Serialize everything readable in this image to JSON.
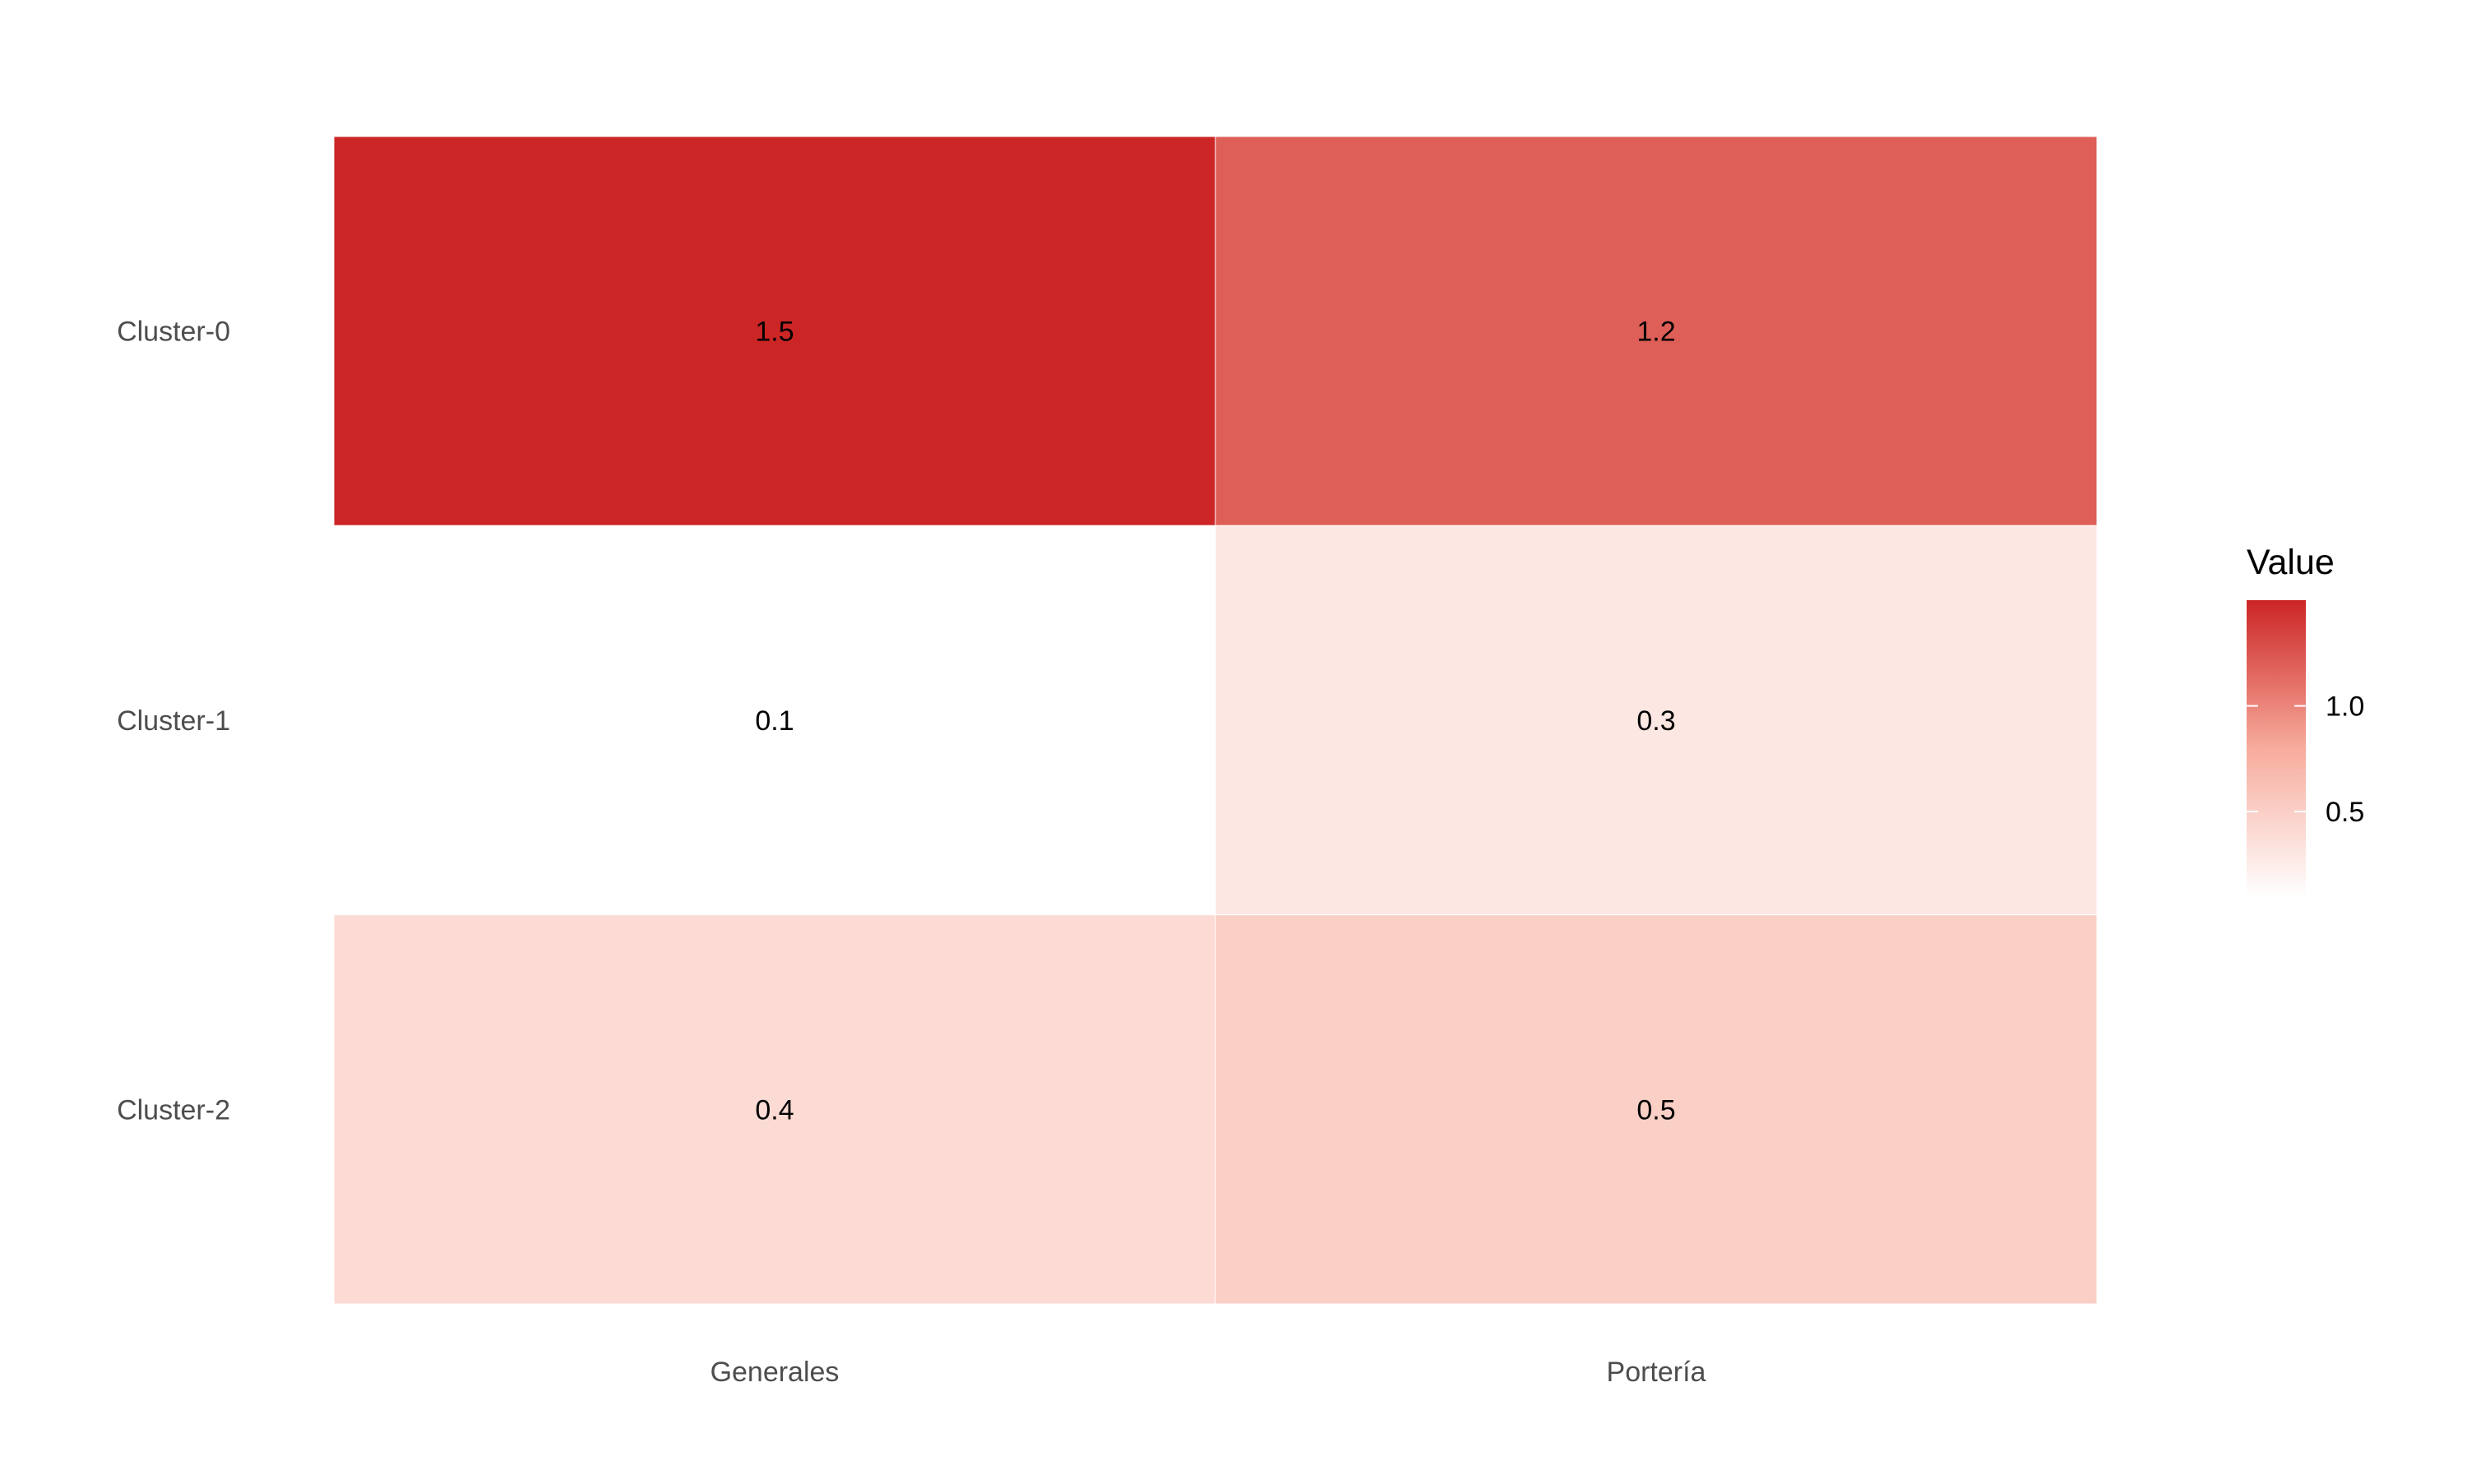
{
  "chart_data": {
    "type": "heatmap",
    "title": "",
    "xlabel": "",
    "ylabel": "",
    "x_categories": [
      "Generales",
      "Portería"
    ],
    "y_categories": [
      "Cluster-0",
      "Cluster-1",
      "Cluster-2"
    ],
    "values": [
      [
        1.5,
        1.2
      ],
      [
        0.1,
        0.3
      ],
      [
        0.4,
        0.5
      ]
    ],
    "cell_labels": [
      [
        "1.5",
        "1.2"
      ],
      [
        "0.1",
        "0.3"
      ],
      [
        "0.4",
        "0.5"
      ]
    ],
    "legend": {
      "title": "Value",
      "placement": "right",
      "ticks": [
        1.0,
        0.5
      ],
      "tick_labels": [
        "1.0",
        "0.5"
      ],
      "range": [
        0.1,
        1.5
      ]
    },
    "colors": {
      "low": "#ffffff",
      "mid": "#f7ab9c",
      "high": "#cc2525",
      "text": "#000000",
      "axis_text": "#4d4d4d",
      "background": "#ffffff"
    },
    "grid": false
  }
}
